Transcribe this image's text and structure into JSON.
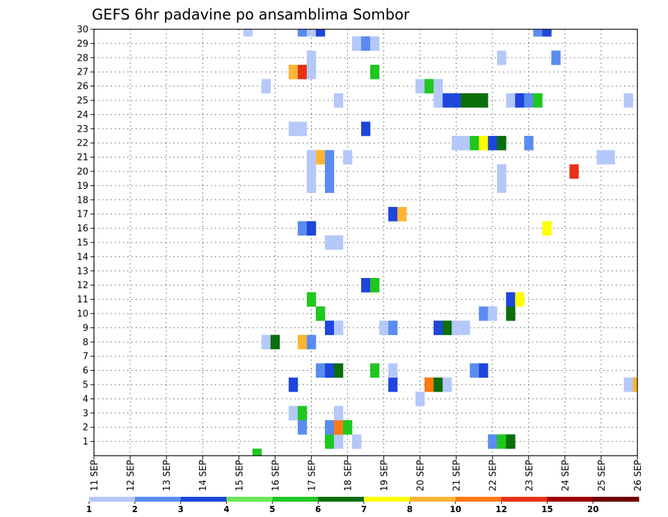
{
  "chart_data": {
    "type": "heatmap",
    "title": "GEFS 6hr padavine po ansamblima Sombor",
    "x_categories": [
      "11 SEP",
      "12 SEP",
      "13 SEP",
      "14 SEP",
      "15 SEP",
      "16 SEP",
      "17 SEP",
      "18 SEP",
      "19 SEP",
      "20 SEP",
      "21 SEP",
      "22 SEP",
      "23 SEP",
      "24 SEP",
      "25 SEP",
      "26 SEP"
    ],
    "y_categories": [
      1,
      2,
      3,
      4,
      5,
      6,
      7,
      8,
      9,
      10,
      11,
      12,
      13,
      14,
      15,
      16,
      17,
      18,
      19,
      20,
      21,
      22,
      23,
      24,
      25,
      26,
      27,
      28,
      29,
      30
    ],
    "xlim": [
      0,
      60
    ],
    "ylim": [
      0,
      30
    ],
    "time_step_hours": 6,
    "legend": {
      "placement": "bottom",
      "labels": [
        "1",
        "2",
        "3",
        "4",
        "5",
        "6",
        "7",
        "8",
        "10",
        "12",
        "15",
        "20"
      ],
      "colors": [
        "#b4c8fa",
        "#5a8cf0",
        "#1e46dc",
        "#6ee65a",
        "#1ec81e",
        "#0a6e0a",
        "#ffff00",
        "#ffb432",
        "#ff7814",
        "#e63214",
        "#a00000",
        "#6e0000"
      ]
    },
    "cells": [
      {
        "member": 0,
        "step": 18,
        "v": 5
      },
      {
        "member": 1,
        "step": 26,
        "v": 5
      },
      {
        "member": 1,
        "step": 27,
        "v": 1
      },
      {
        "member": 1,
        "step": 29,
        "v": 1
      },
      {
        "member": 1,
        "step": 44,
        "v": 2
      },
      {
        "member": 1,
        "step": 45,
        "v": 5
      },
      {
        "member": 1,
        "step": 46,
        "v": 6
      },
      {
        "member": 2,
        "step": 23,
        "v": 2
      },
      {
        "member": 2,
        "step": 26,
        "v": 2
      },
      {
        "member": 2,
        "step": 27,
        "v": 10
      },
      {
        "member": 2,
        "step": 28,
        "v": 5
      },
      {
        "member": 3,
        "step": 22,
        "v": 1
      },
      {
        "member": 3,
        "step": 23,
        "v": 5
      },
      {
        "member": 3,
        "step": 27,
        "v": 1
      },
      {
        "member": 4,
        "step": 36,
        "v": 1
      },
      {
        "member": 5,
        "step": 22,
        "v": 3
      },
      {
        "member": 5,
        "step": 33,
        "v": 3
      },
      {
        "member": 5,
        "step": 37,
        "v": 10
      },
      {
        "member": 5,
        "step": 38,
        "v": 6
      },
      {
        "member": 5,
        "step": 39,
        "v": 1
      },
      {
        "member": 5,
        "step": 59,
        "v": 1
      },
      {
        "member": 5,
        "step": 60,
        "v": 8
      },
      {
        "member": 6,
        "step": 25,
        "v": 2
      },
      {
        "member": 6,
        "step": 26,
        "v": 3
      },
      {
        "member": 6,
        "step": 27,
        "v": 6
      },
      {
        "member": 6,
        "step": 31,
        "v": 5
      },
      {
        "member": 6,
        "step": 33,
        "v": 1
      },
      {
        "member": 6,
        "step": 42,
        "v": 2
      },
      {
        "member": 6,
        "step": 43,
        "v": 3
      },
      {
        "member": 8,
        "step": 19,
        "v": 1
      },
      {
        "member": 8,
        "step": 20,
        "v": 6
      },
      {
        "member": 8,
        "step": 23,
        "v": 8
      },
      {
        "member": 8,
        "step": 24,
        "v": 2
      },
      {
        "member": 9,
        "step": 26,
        "v": 3
      },
      {
        "member": 9,
        "step": 27,
        "v": 1
      },
      {
        "member": 9,
        "step": 32,
        "v": 1
      },
      {
        "member": 9,
        "step": 33,
        "v": 2
      },
      {
        "member": 9,
        "step": 38,
        "v": 3
      },
      {
        "member": 9,
        "step": 39,
        "v": 6
      },
      {
        "member": 9,
        "step": 40,
        "v": 1
      },
      {
        "member": 9,
        "step": 41,
        "v": 1
      },
      {
        "member": 10,
        "step": 25,
        "v": 5
      },
      {
        "member": 10,
        "step": 43,
        "v": 2
      },
      {
        "member": 10,
        "step": 44,
        "v": 1
      },
      {
        "member": 10,
        "step": 46,
        "v": 6
      },
      {
        "member": 11,
        "step": 24,
        "v": 5
      },
      {
        "member": 11,
        "step": 46,
        "v": 3
      },
      {
        "member": 11,
        "step": 47,
        "v": 7
      },
      {
        "member": 12,
        "step": 30,
        "v": 3
      },
      {
        "member": 12,
        "step": 31,
        "v": 5
      },
      {
        "member": 15,
        "step": 26,
        "v": 1
      },
      {
        "member": 15,
        "step": 27,
        "v": 1
      },
      {
        "member": 16,
        "step": 23,
        "v": 2
      },
      {
        "member": 16,
        "step": 24,
        "v": 3
      },
      {
        "member": 16,
        "step": 50,
        "v": 7
      },
      {
        "member": 17,
        "step": 33,
        "v": 3
      },
      {
        "member": 17,
        "step": 34,
        "v": 8
      },
      {
        "member": 19,
        "step": 24,
        "v": 1
      },
      {
        "member": 19,
        "step": 26,
        "v": 2
      },
      {
        "member": 19,
        "step": 45,
        "v": 1
      },
      {
        "member": 20,
        "step": 24,
        "v": 1
      },
      {
        "member": 20,
        "step": 26,
        "v": 2
      },
      {
        "member": 20,
        "step": 45,
        "v": 1
      },
      {
        "member": 20,
        "step": 53,
        "v": 12
      },
      {
        "member": 21,
        "step": 24,
        "v": 1
      },
      {
        "member": 21,
        "step": 25,
        "v": 8
      },
      {
        "member": 21,
        "step": 26,
        "v": 2
      },
      {
        "member": 21,
        "step": 28,
        "v": 1
      },
      {
        "member": 21,
        "step": 56,
        "v": 1
      },
      {
        "member": 21,
        "step": 57,
        "v": 1
      },
      {
        "member": 22,
        "step": 40,
        "v": 1
      },
      {
        "member": 22,
        "step": 41,
        "v": 1
      },
      {
        "member": 22,
        "step": 42,
        "v": 5
      },
      {
        "member": 22,
        "step": 43,
        "v": 7
      },
      {
        "member": 22,
        "step": 44,
        "v": 3
      },
      {
        "member": 22,
        "step": 45,
        "v": 6
      },
      {
        "member": 22,
        "step": 48,
        "v": 2
      },
      {
        "member": 23,
        "step": 22,
        "v": 1
      },
      {
        "member": 23,
        "step": 23,
        "v": 1
      },
      {
        "member": 23,
        "step": 30,
        "v": 3
      },
      {
        "member": 25,
        "step": 27,
        "v": 1
      },
      {
        "member": 25,
        "step": 38,
        "v": 1
      },
      {
        "member": 25,
        "step": 39,
        "v": 3
      },
      {
        "member": 25,
        "step": 40,
        "v": 3
      },
      {
        "member": 25,
        "step": 41,
        "v": 6
      },
      {
        "member": 25,
        "step": 42,
        "v": 6
      },
      {
        "member": 25,
        "step": 43,
        "v": 6
      },
      {
        "member": 25,
        "step": 46,
        "v": 1
      },
      {
        "member": 25,
        "step": 47,
        "v": 3
      },
      {
        "member": 25,
        "step": 48,
        "v": 2
      },
      {
        "member": 25,
        "step": 49,
        "v": 5
      },
      {
        "member": 25,
        "step": 59,
        "v": 1
      },
      {
        "member": 26,
        "step": 19,
        "v": 1
      },
      {
        "member": 26,
        "step": 36,
        "v": 1
      },
      {
        "member": 26,
        "step": 37,
        "v": 5
      },
      {
        "member": 26,
        "step": 38,
        "v": 1
      },
      {
        "member": 27,
        "step": 22,
        "v": 8
      },
      {
        "member": 27,
        "step": 23,
        "v": 12
      },
      {
        "member": 27,
        "step": 24,
        "v": 1
      },
      {
        "member": 27,
        "step": 31,
        "v": 5
      },
      {
        "member": 28,
        "step": 24,
        "v": 1
      },
      {
        "member": 28,
        "step": 45,
        "v": 1
      },
      {
        "member": 28,
        "step": 51,
        "v": 2
      },
      {
        "member": 29,
        "step": 29,
        "v": 1
      },
      {
        "member": 29,
        "step": 30,
        "v": 2
      },
      {
        "member": 29,
        "step": 31,
        "v": 1
      },
      {
        "member": 30,
        "step": 17,
        "v": 1
      },
      {
        "member": 30,
        "step": 23,
        "v": 2
      },
      {
        "member": 30,
        "step": 24,
        "v": 1
      },
      {
        "member": 30,
        "step": 25,
        "v": 3
      },
      {
        "member": 30,
        "step": 49,
        "v": 2
      },
      {
        "member": 30,
        "step": 50,
        "v": 3
      }
    ]
  }
}
